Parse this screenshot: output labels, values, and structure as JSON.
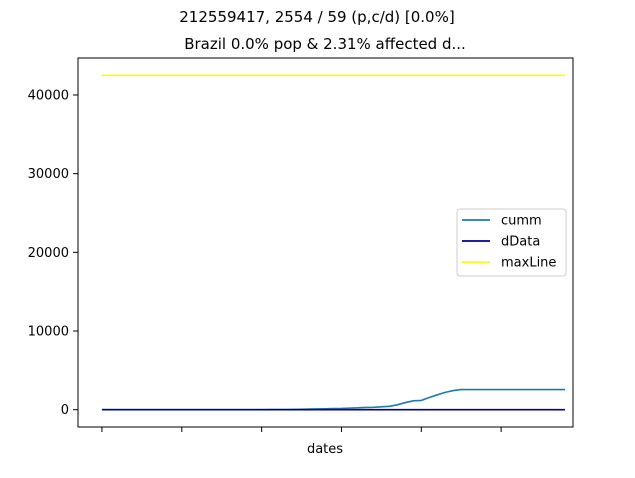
{
  "suptitle": "212559417, 2554 / 59 (p,c/d) [0.0%]",
  "chart_data": {
    "type": "line",
    "title": "Brazil 0.0% pop & 2.31% affected d...",
    "xlabel": "dates",
    "ylabel": "",
    "x": [
      0,
      1,
      2,
      3,
      4,
      5,
      6,
      7,
      8,
      9,
      10,
      11,
      12,
      13,
      14,
      15,
      16,
      17,
      18,
      19,
      20,
      21,
      22,
      23,
      24,
      25,
      26,
      27,
      28,
      29,
      30,
      31,
      32,
      33,
      34,
      35,
      36,
      37,
      38,
      39,
      40,
      41,
      42,
      43,
      44,
      45,
      46,
      47,
      48,
      49,
      50,
      51,
      52,
      53,
      54,
      55,
      56,
      57,
      58
    ],
    "x_tick_labels": [
      "",
      "",
      "",
      "",
      "",
      ""
    ],
    "x_tick_positions": [
      0,
      10,
      20,
      30,
      40,
      50
    ],
    "xlim": [
      -3,
      59
    ],
    "ylim": [
      -2200,
      44700
    ],
    "y_ticks": [
      0,
      10000,
      20000,
      30000,
      40000
    ],
    "y_tick_labels": [
      "0",
      "10000",
      "20000",
      "30000",
      "40000"
    ],
    "grid": false,
    "legend_position": "center-right",
    "series": [
      {
        "name": "cumm",
        "color": "#1f77b4",
        "values": [
          1,
          1,
          1,
          1,
          1,
          1,
          1,
          1,
          1,
          1,
          1,
          1,
          1,
          1,
          2,
          2,
          2,
          2,
          4,
          4,
          8,
          13,
          19,
          25,
          34,
          52,
          77,
          98,
          121,
          151,
          162,
          200,
          234,
          291,
          306,
          371,
          428,
          621,
          904,
          1128,
          1178,
          1546,
          1891,
          2201,
          2433,
          2554,
          2554,
          2554,
          2554,
          2554,
          2554,
          2554,
          2554,
          2554,
          2554,
          2554,
          2554,
          2554,
          2554
        ]
      },
      {
        "name": "dData",
        "color": "#00008b",
        "values": [
          0,
          0,
          0,
          0,
          0,
          0,
          0,
          0,
          0,
          0,
          0,
          0,
          0,
          0,
          0,
          0,
          0,
          0,
          0,
          0,
          0,
          0,
          0,
          0,
          0,
          0,
          0,
          0,
          0,
          0,
          0,
          0,
          0,
          0,
          0,
          0,
          0,
          0,
          0,
          0,
          0,
          0,
          0,
          0,
          0,
          0,
          0,
          0,
          0,
          0,
          0,
          0,
          0,
          0,
          0,
          0,
          0,
          0,
          0
        ]
      },
      {
        "name": "maxLine",
        "color": "#ffff00",
        "values": [
          42500,
          42500,
          42500,
          42500,
          42500,
          42500,
          42500,
          42500,
          42500,
          42500,
          42500,
          42500,
          42500,
          42500,
          42500,
          42500,
          42500,
          42500,
          42500,
          42500,
          42500,
          42500,
          42500,
          42500,
          42500,
          42500,
          42500,
          42500,
          42500,
          42500,
          42500,
          42500,
          42500,
          42500,
          42500,
          42500,
          42500,
          42500,
          42500,
          42500,
          42500,
          42500,
          42500,
          42500,
          42500,
          42500,
          42500,
          42500,
          42500,
          42500,
          42500,
          42500,
          42500,
          42500,
          42500,
          42500,
          42500,
          42500,
          42500
        ]
      }
    ]
  }
}
